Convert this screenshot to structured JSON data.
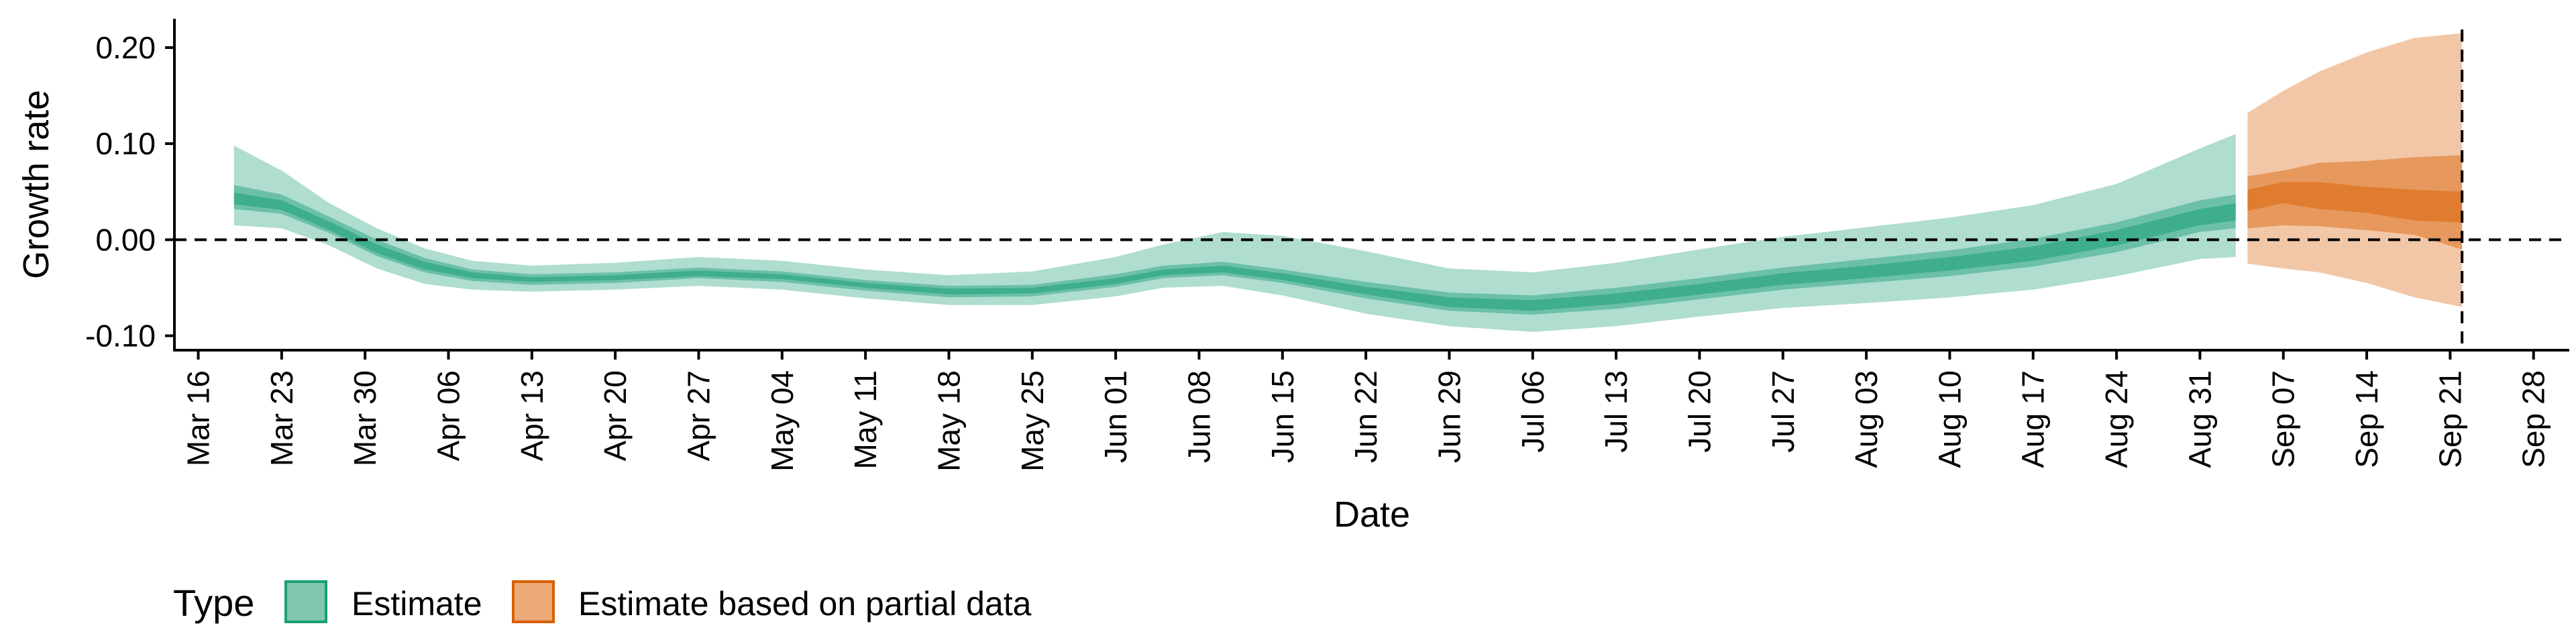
{
  "chart_data": {
    "type": "area",
    "title": "",
    "xlabel": "Date",
    "ylabel": "Growth rate",
    "x_axis_type": "date",
    "xlim": [
      "2020-03-14",
      "2020-10-01"
    ],
    "ylim": [
      -0.115,
      0.23
    ],
    "grid": false,
    "x_ticks": [
      {
        "date": "2020-03-16",
        "label": "Mar 16"
      },
      {
        "date": "2020-03-23",
        "label": "Mar 23"
      },
      {
        "date": "2020-03-30",
        "label": "Mar 30"
      },
      {
        "date": "2020-04-06",
        "label": "Apr 06"
      },
      {
        "date": "2020-04-13",
        "label": "Apr 13"
      },
      {
        "date": "2020-04-20",
        "label": "Apr 20"
      },
      {
        "date": "2020-04-27",
        "label": "Apr 27"
      },
      {
        "date": "2020-05-04",
        "label": "May 04"
      },
      {
        "date": "2020-05-11",
        "label": "May 11"
      },
      {
        "date": "2020-05-18",
        "label": "May 18"
      },
      {
        "date": "2020-05-25",
        "label": "May 25"
      },
      {
        "date": "2020-06-01",
        "label": "Jun 01"
      },
      {
        "date": "2020-06-08",
        "label": "Jun 08"
      },
      {
        "date": "2020-06-15",
        "label": "Jun 15"
      },
      {
        "date": "2020-06-22",
        "label": "Jun 22"
      },
      {
        "date": "2020-06-29",
        "label": "Jun 29"
      },
      {
        "date": "2020-07-06",
        "label": "Jul 06"
      },
      {
        "date": "2020-07-13",
        "label": "Jul 13"
      },
      {
        "date": "2020-07-20",
        "label": "Jul 20"
      },
      {
        "date": "2020-07-27",
        "label": "Jul 27"
      },
      {
        "date": "2020-08-03",
        "label": "Aug 03"
      },
      {
        "date": "2020-08-10",
        "label": "Aug 10"
      },
      {
        "date": "2020-08-17",
        "label": "Aug 17"
      },
      {
        "date": "2020-08-24",
        "label": "Aug 24"
      },
      {
        "date": "2020-08-31",
        "label": "Aug 31"
      },
      {
        "date": "2020-09-07",
        "label": "Sep 07"
      },
      {
        "date": "2020-09-14",
        "label": "Sep 14"
      },
      {
        "date": "2020-09-21",
        "label": "Sep 21"
      },
      {
        "date": "2020-09-28",
        "label": "Sep 28"
      }
    ],
    "y_ticks": [
      {
        "value": 0.2,
        "label": "0.20"
      },
      {
        "value": 0.1,
        "label": "0.10"
      },
      {
        "value": 0.0,
        "label": "0.00"
      },
      {
        "value": -0.1,
        "label": "-0.10"
      }
    ],
    "reference_lines": [
      {
        "orientation": "horizontal",
        "value": 0.0,
        "style": "dashed"
      },
      {
        "orientation": "vertical",
        "date": "2020-09-22",
        "style": "dashed"
      }
    ],
    "legend": {
      "title": "Type",
      "placement": "bottom-left",
      "entries": [
        {
          "label": "Estimate",
          "fill": "#7fc7ad",
          "border": "#1b9e77"
        },
        {
          "label": "Estimate based on partial data",
          "fill": "#ecaa78",
          "border": "#d95f02"
        }
      ]
    },
    "series": [
      {
        "name": "Estimate",
        "color": "#1b9e77",
        "points": [
          {
            "date": "2020-03-19",
            "lo90": 0.015,
            "lo50": 0.032,
            "lo20": 0.037,
            "hi20": 0.049,
            "hi50": 0.057,
            "hi90": 0.098
          },
          {
            "date": "2020-03-23",
            "lo90": 0.012,
            "lo50": 0.027,
            "lo20": 0.031,
            "hi20": 0.041,
            "hi50": 0.047,
            "hi90": 0.072
          },
          {
            "date": "2020-03-27",
            "lo90": -0.006,
            "lo50": 0.007,
            "lo20": 0.01,
            "hi20": 0.019,
            "hi50": 0.024,
            "hi90": 0.038
          },
          {
            "date": "2020-03-31",
            "lo90": -0.03,
            "lo50": -0.017,
            "lo20": -0.014,
            "hi20": -0.005,
            "hi50": 0.0,
            "hi90": 0.012
          },
          {
            "date": "2020-04-04",
            "lo90": -0.046,
            "lo50": -0.034,
            "lo20": -0.031,
            "hi20": -0.023,
            "hi50": -0.019,
            "hi90": -0.009
          },
          {
            "date": "2020-04-08",
            "lo90": -0.052,
            "lo50": -0.043,
            "lo20": -0.04,
            "hi20": -0.034,
            "hi50": -0.031,
            "hi90": -0.022
          },
          {
            "date": "2020-04-13",
            "lo90": -0.054,
            "lo50": -0.047,
            "lo20": -0.044,
            "hi20": -0.039,
            "hi50": -0.036,
            "hi90": -0.027
          },
          {
            "date": "2020-04-20",
            "lo90": -0.052,
            "lo50": -0.045,
            "lo20": -0.042,
            "hi20": -0.037,
            "hi50": -0.034,
            "hi90": -0.024
          },
          {
            "date": "2020-04-27",
            "lo90": -0.048,
            "lo50": -0.04,
            "lo20": -0.038,
            "hi20": -0.032,
            "hi50": -0.029,
            "hi90": -0.018
          },
          {
            "date": "2020-05-04",
            "lo90": -0.052,
            "lo50": -0.044,
            "lo20": -0.041,
            "hi20": -0.036,
            "hi50": -0.033,
            "hi90": -0.022
          },
          {
            "date": "2020-05-11",
            "lo90": -0.061,
            "lo50": -0.053,
            "lo20": -0.05,
            "hi20": -0.045,
            "hi50": -0.042,
            "hi90": -0.031
          },
          {
            "date": "2020-05-18",
            "lo90": -0.068,
            "lo50": -0.06,
            "lo20": -0.057,
            "hi20": -0.051,
            "hi50": -0.048,
            "hi90": -0.037
          },
          {
            "date": "2020-05-25",
            "lo90": -0.068,
            "lo50": -0.059,
            "lo20": -0.056,
            "hi20": -0.05,
            "hi50": -0.047,
            "hi90": -0.033
          },
          {
            "date": "2020-06-01",
            "lo90": -0.059,
            "lo50": -0.049,
            "lo20": -0.046,
            "hi20": -0.04,
            "hi50": -0.036,
            "hi90": -0.018
          },
          {
            "date": "2020-06-05",
            "lo90": -0.05,
            "lo50": -0.04,
            "lo20": -0.037,
            "hi20": -0.031,
            "hi50": -0.027,
            "hi90": -0.005
          },
          {
            "date": "2020-06-10",
            "lo90": -0.048,
            "lo50": -0.037,
            "lo20": -0.034,
            "hi20": -0.027,
            "hi50": -0.023,
            "hi90": 0.008
          },
          {
            "date": "2020-06-15",
            "lo90": -0.058,
            "lo50": -0.045,
            "lo20": -0.042,
            "hi20": -0.035,
            "hi50": -0.031,
            "hi90": 0.004
          },
          {
            "date": "2020-06-22",
            "lo90": -0.077,
            "lo50": -0.061,
            "lo20": -0.057,
            "hi20": -0.049,
            "hi50": -0.044,
            "hi90": -0.012
          },
          {
            "date": "2020-06-29",
            "lo90": -0.09,
            "lo50": -0.074,
            "lo20": -0.07,
            "hi20": -0.06,
            "hi50": -0.055,
            "hi90": -0.03
          },
          {
            "date": "2020-07-06",
            "lo90": -0.096,
            "lo50": -0.078,
            "lo20": -0.074,
            "hi20": -0.063,
            "hi50": -0.058,
            "hi90": -0.034
          },
          {
            "date": "2020-07-13",
            "lo90": -0.09,
            "lo50": -0.072,
            "lo20": -0.067,
            "hi20": -0.056,
            "hi50": -0.05,
            "hi90": -0.024
          },
          {
            "date": "2020-07-20",
            "lo90": -0.08,
            "lo50": -0.062,
            "lo20": -0.057,
            "hi20": -0.046,
            "hi50": -0.04,
            "hi90": -0.01
          },
          {
            "date": "2020-07-27",
            "lo90": -0.071,
            "lo50": -0.052,
            "lo20": -0.047,
            "hi20": -0.035,
            "hi50": -0.029,
            "hi90": 0.003
          },
          {
            "date": "2020-08-03",
            "lo90": -0.066,
            "lo50": -0.045,
            "lo20": -0.04,
            "hi20": -0.027,
            "hi50": -0.02,
            "hi90": 0.013
          },
          {
            "date": "2020-08-10",
            "lo90": -0.06,
            "lo50": -0.038,
            "lo20": -0.032,
            "hi20": -0.018,
            "hi50": -0.011,
            "hi90": 0.023
          },
          {
            "date": "2020-08-17",
            "lo90": -0.052,
            "lo50": -0.028,
            "lo20": -0.022,
            "hi20": -0.007,
            "hi50": 0.001,
            "hi90": 0.036
          },
          {
            "date": "2020-08-24",
            "lo90": -0.038,
            "lo50": -0.013,
            "lo20": -0.006,
            "hi20": 0.01,
            "hi50": 0.018,
            "hi90": 0.058
          },
          {
            "date": "2020-08-31",
            "lo90": -0.02,
            "lo50": 0.008,
            "lo20": 0.015,
            "hi20": 0.032,
            "hi50": 0.041,
            "hi90": 0.095
          },
          {
            "date": "2020-09-03",
            "lo90": -0.018,
            "lo50": 0.012,
            "lo20": 0.02,
            "hi20": 0.038,
            "hi50": 0.047,
            "hi90": 0.11
          }
        ]
      },
      {
        "name": "Estimate based on partial data",
        "color": "#d95f02",
        "points": [
          {
            "date": "2020-09-04",
            "lo90": -0.025,
            "lo50": 0.012,
            "lo20": 0.03,
            "hi20": 0.052,
            "hi50": 0.066,
            "hi90": 0.132
          },
          {
            "date": "2020-09-07",
            "lo90": -0.03,
            "lo50": 0.015,
            "lo20": 0.038,
            "hi20": 0.06,
            "hi50": 0.072,
            "hi90": 0.155
          },
          {
            "date": "2020-09-10",
            "lo90": -0.034,
            "lo50": 0.014,
            "lo20": 0.032,
            "hi20": 0.06,
            "hi50": 0.08,
            "hi90": 0.175
          },
          {
            "date": "2020-09-14",
            "lo90": -0.045,
            "lo50": 0.01,
            "lo20": 0.028,
            "hi20": 0.055,
            "hi50": 0.082,
            "hi90": 0.195
          },
          {
            "date": "2020-09-18",
            "lo90": -0.06,
            "lo50": 0.005,
            "lo20": 0.02,
            "hi20": 0.052,
            "hi50": 0.086,
            "hi90": 0.21
          },
          {
            "date": "2020-09-22",
            "lo90": -0.07,
            "lo50": -0.01,
            "lo20": 0.018,
            "hi20": 0.05,
            "hi50": 0.088,
            "hi90": 0.215
          }
        ]
      }
    ]
  }
}
